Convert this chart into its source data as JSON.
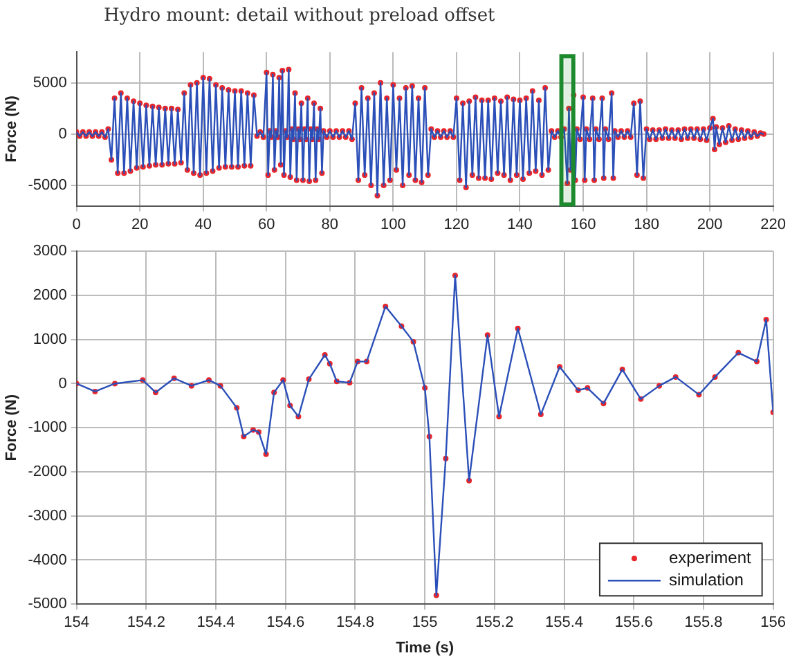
{
  "chart_data": [
    {
      "type": "line",
      "title": "Hydro mount: detail without preload offset",
      "ylabel": "Force (N)",
      "xlim": [
        0,
        220
      ],
      "xticks": [
        0,
        20,
        40,
        60,
        80,
        100,
        120,
        140,
        160,
        180,
        200,
        220
      ],
      "ylim": [
        -7000,
        8000
      ],
      "yticks": [
        -5000,
        0,
        5000
      ],
      "grid": true,
      "legend": false,
      "x": [
        0,
        1,
        2,
        3,
        4,
        5,
        6,
        7,
        8,
        9,
        10,
        11,
        12,
        13,
        14,
        15,
        16,
        17,
        18,
        19,
        20,
        21,
        22,
        23,
        24,
        25,
        26,
        27,
        28,
        29,
        30,
        31,
        32,
        33,
        34,
        35,
        36,
        37,
        38,
        39,
        40,
        41,
        42,
        43,
        44,
        45,
        46,
        47,
        48,
        49,
        50,
        51,
        52,
        53,
        54,
        55,
        56,
        57,
        58,
        59,
        60,
        60.5,
        61,
        61.5,
        62,
        62.5,
        63,
        63.5,
        64,
        64.5,
        65,
        65.5,
        66,
        66.5,
        67,
        67.5,
        68,
        68.5,
        69,
        69.5,
        70,
        70.5,
        71,
        71.5,
        72,
        72.5,
        73,
        73.5,
        74,
        74.5,
        75,
        75.5,
        76,
        76.5,
        77,
        77.5,
        78,
        79,
        80,
        81,
        82,
        83,
        84,
        85,
        86,
        87,
        88,
        89,
        90,
        91,
        92,
        93,
        94,
        95,
        96,
        97,
        98,
        99,
        100,
        101,
        102,
        103,
        104,
        105,
        106,
        107,
        108,
        109,
        110,
        111,
        112,
        113,
        114,
        115,
        116,
        117,
        118,
        119,
        120,
        121,
        122,
        123,
        124,
        125,
        126,
        127,
        128,
        129,
        130,
        131,
        132,
        133,
        134,
        135,
        136,
        137,
        138,
        139,
        140,
        141,
        142,
        143,
        144,
        145,
        146,
        147,
        148,
        149,
        150,
        151,
        152,
        153,
        154,
        155,
        155.5,
        156,
        157,
        157.5,
        158,
        159,
        160,
        160.5,
        161,
        162,
        163,
        163.5,
        164,
        165,
        166,
        166.5,
        167,
        168,
        169,
        169.5,
        170,
        171,
        172,
        173,
        174,
        175,
        176,
        177,
        178,
        179,
        180,
        181,
        182,
        183,
        184,
        185,
        186,
        187,
        188,
        189,
        190,
        191,
        192,
        193,
        194,
        195,
        196,
        197,
        198,
        199,
        200,
        201,
        201.5,
        202,
        203,
        204,
        205,
        206,
        207,
        208,
        209,
        210,
        211,
        212,
        213,
        214,
        215,
        216,
        217
      ],
      "series": [
        {
          "type": "scatter",
          "color": "#e8262b",
          "marker": "circle",
          "values": [
            200,
            -200,
            200,
            -200,
            200,
            -200,
            200,
            -200,
            200,
            -300,
            500,
            -2500,
            3500,
            -3800,
            4000,
            -3800,
            3500,
            -3600,
            3200,
            -3300,
            3000,
            -3200,
            2800,
            -3100,
            2700,
            -3000,
            2600,
            -3000,
            2500,
            -2900,
            2500,
            -2900,
            2400,
            -2800,
            4000,
            -3500,
            4800,
            -3800,
            5000,
            -4000,
            5500,
            -3800,
            5400,
            -3600,
            4800,
            -3300,
            4500,
            -3200,
            4300,
            -3200,
            4200,
            -3200,
            4200,
            -3100,
            4000,
            -3100,
            3800,
            -200,
            200,
            -300,
            6000,
            -4000,
            300,
            -300,
            5800,
            -3500,
            300,
            -300,
            5500,
            -3000,
            6200,
            -4000,
            300,
            -300,
            6300,
            -4200,
            500,
            -500,
            4000,
            -4500,
            500,
            -500,
            3000,
            -4500,
            500,
            -500,
            3500,
            -4600,
            500,
            -500,
            3000,
            -4500,
            500,
            -500,
            2500,
            -3800,
            300,
            -300,
            300,
            -300,
            300,
            -300,
            300,
            -300,
            300,
            -500,
            3000,
            -4500,
            4500,
            -4000,
            3500,
            -5000,
            4000,
            -6000,
            5000,
            -5000,
            3500,
            -4500,
            4800,
            -3500,
            3500,
            -5000,
            4500,
            -4000,
            4700,
            -4500,
            3500,
            -4700,
            4500,
            -4000,
            500,
            -300,
            300,
            -300,
            300,
            -300,
            300,
            -300,
            3500,
            -4500,
            3000,
            -5200,
            3200,
            -4000,
            3600,
            -4300,
            3300,
            -4300,
            3300,
            -4400,
            3500,
            -3800,
            3200,
            -4000,
            3600,
            -4500,
            3400,
            -4000,
            3300,
            -4400,
            3500,
            -3800,
            4200,
            -3600,
            3300,
            -4000,
            4500,
            -3500,
            300,
            -300,
            300,
            -300,
            500,
            -4800,
            2500,
            -3500,
            3800,
            -4500,
            500,
            -500,
            3600,
            -4500,
            500,
            -500,
            3500,
            -4500,
            500,
            -500,
            3500,
            -4300,
            500,
            -500,
            4000,
            -4300,
            300,
            -300,
            300,
            -300,
            300,
            -300,
            3000,
            -4000,
            3200,
            -4300,
            500,
            -500,
            400,
            -500,
            400,
            -400,
            500,
            -400,
            400,
            -400,
            400,
            -500,
            500,
            -400,
            500,
            -400,
            500,
            -500,
            500,
            -600,
            600,
            1500,
            -1500,
            700,
            -1000,
            600,
            -800,
            800,
            -600,
            500,
            -500,
            400,
            -400,
            300,
            -300,
            200,
            -200,
            100,
            0
          ]
        },
        {
          "type": "line",
          "color": "#2b4fb8",
          "marker": "none",
          "values": [
            200,
            -200,
            200,
            -200,
            200,
            -200,
            200,
            -200,
            200,
            -300,
            500,
            -2500,
            3500,
            -3800,
            4000,
            -3800,
            3500,
            -3600,
            3200,
            -3300,
            3000,
            -3200,
            2800,
            -3100,
            2700,
            -3000,
            2600,
            -3000,
            2500,
            -2900,
            2500,
            -2900,
            2400,
            -2800,
            4000,
            -3500,
            4800,
            -3800,
            5000,
            -4000,
            5500,
            -3800,
            5400,
            -3600,
            4800,
            -3300,
            4500,
            -3200,
            4300,
            -3200,
            4200,
            -3200,
            4200,
            -3100,
            4000,
            -3100,
            3800,
            -200,
            200,
            -300,
            6000,
            -4000,
            300,
            -300,
            5800,
            -3500,
            300,
            -300,
            5500,
            -3000,
            6200,
            -4000,
            300,
            -300,
            6300,
            -4200,
            500,
            -500,
            4000,
            -4500,
            500,
            -500,
            3000,
            -4500,
            500,
            -500,
            3500,
            -4600,
            500,
            -500,
            3000,
            -4500,
            500,
            -500,
            2500,
            -3800,
            300,
            -300,
            300,
            -300,
            300,
            -300,
            300,
            -300,
            300,
            -500,
            3000,
            -4500,
            4500,
            -4000,
            3500,
            -5000,
            4000,
            -6000,
            5000,
            -5000,
            3500,
            -4500,
            4800,
            -3500,
            3500,
            -5000,
            4500,
            -4000,
            4700,
            -4500,
            3500,
            -4700,
            4500,
            -4000,
            500,
            -300,
            300,
            -300,
            300,
            -300,
            300,
            -300,
            3500,
            -4500,
            3000,
            -5200,
            3200,
            -4000,
            3600,
            -4300,
            3300,
            -4300,
            3300,
            -4400,
            3500,
            -3800,
            3200,
            -4000,
            3600,
            -4500,
            3400,
            -4000,
            3300,
            -4400,
            3500,
            -3800,
            4200,
            -3600,
            3300,
            -4000,
            4500,
            -3500,
            300,
            -300,
            300,
            -300,
            500,
            -4800,
            2500,
            -3500,
            3800,
            -4500,
            500,
            -500,
            3600,
            -4500,
            500,
            -500,
            3500,
            -4500,
            500,
            -500,
            3500,
            -4300,
            500,
            -500,
            4000,
            -4300,
            300,
            -300,
            300,
            -300,
            300,
            -300,
            3000,
            -4000,
            3200,
            -4300,
            500,
            -500,
            400,
            -500,
            400,
            -400,
            500,
            -400,
            400,
            -400,
            400,
            -500,
            500,
            -400,
            500,
            -400,
            500,
            -500,
            500,
            -600,
            600,
            1500,
            -1500,
            700,
            -1000,
            600,
            -800,
            800,
            -600,
            500,
            -500,
            400,
            -400,
            300,
            -300,
            200,
            -200,
            100,
            0
          ]
        }
      ],
      "bands": [
        {
          "axis": "x",
          "from": 154,
          "to": 156,
          "color": "#1e8a2e"
        }
      ]
    },
    {
      "type": "line",
      "xlabel": "Time (s)",
      "ylabel": "Force (N)",
      "xlim": [
        154,
        156
      ],
      "xticks": [
        154,
        154.2,
        154.4,
        154.6,
        154.8,
        155,
        155.2,
        155.4,
        155.6,
        155.8,
        156
      ],
      "ylim": [
        -5000,
        3000
      ],
      "yticks": [
        -5000,
        -4000,
        -3000,
        -2000,
        -1000,
        0,
        1000,
        2000,
        3000
      ],
      "grid": true,
      "legend": "bottom right",
      "x": [
        154,
        154.053,
        154.11,
        154.19,
        154.227,
        154.28,
        154.33,
        154.38,
        154.413,
        154.46,
        154.48,
        154.507,
        154.523,
        154.544,
        154.567,
        154.593,
        154.613,
        154.637,
        154.667,
        154.713,
        154.727,
        154.747,
        154.784,
        154.807,
        154.833,
        154.887,
        154.933,
        154.967,
        155,
        155.013,
        155.033,
        155.06,
        155.087,
        155.127,
        155.18,
        155.213,
        155.267,
        155.333,
        155.387,
        155.44,
        155.467,
        155.513,
        155.567,
        155.62,
        155.673,
        155.72,
        155.787,
        155.833,
        155.9,
        155.953,
        155.98,
        156
      ],
      "series": [
        {
          "name": "experiment",
          "type": "scatter",
          "color": "#e8262b",
          "marker": "circle",
          "values": [
            0,
            -180,
            0,
            80,
            -200,
            120,
            -50,
            80,
            -50,
            -550,
            -1200,
            -1050,
            -1100,
            -1600,
            -200,
            80,
            -500,
            -750,
            100,
            650,
            450,
            50,
            20,
            500,
            500,
            1750,
            1300,
            950,
            -100,
            -1200,
            -4800,
            -1700,
            2450,
            -2200,
            1100,
            -750,
            1250,
            -700,
            380,
            -150,
            -100,
            -450,
            320,
            -350,
            -50,
            150,
            -250,
            150,
            700,
            500,
            1450,
            -650
          ]
        },
        {
          "name": "simulation",
          "type": "line",
          "color": "#2b4fb8",
          "marker": "none",
          "values": [
            0,
            -180,
            0,
            80,
            -200,
            120,
            -50,
            80,
            -50,
            -550,
            -1200,
            -1050,
            -1100,
            -1600,
            -200,
            80,
            -500,
            -750,
            100,
            650,
            450,
            50,
            20,
            500,
            500,
            1750,
            1300,
            950,
            -100,
            -1200,
            -4800,
            -1700,
            2450,
            -2200,
            1100,
            -750,
            1250,
            -700,
            380,
            -150,
            -100,
            -450,
            320,
            -350,
            -50,
            150,
            -250,
            150,
            700,
            500,
            1450,
            -650
          ]
        }
      ]
    }
  ]
}
